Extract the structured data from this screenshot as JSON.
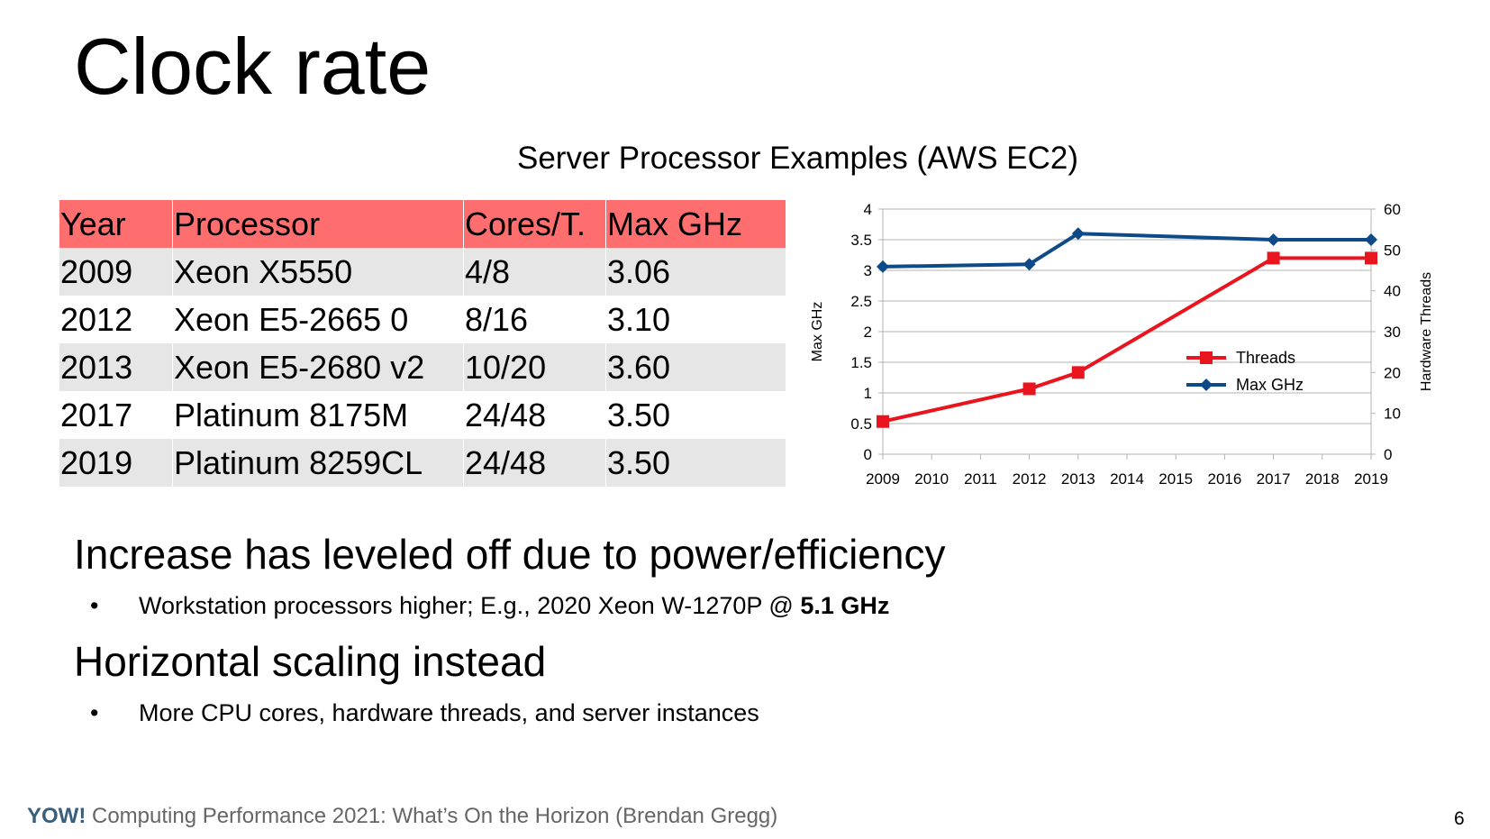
{
  "slide": {
    "title": "Clock rate",
    "subtitle": "Server Processor Examples (AWS EC2)",
    "page_number": "6"
  },
  "table": {
    "headers": [
      "Year",
      "Processor",
      "Cores/T.",
      "Max GHz"
    ],
    "rows": [
      [
        "2009",
        "Xeon X5550",
        "4/8",
        "3.06"
      ],
      [
        "2012",
        "Xeon E5-2665 0",
        "8/16",
        "3.10"
      ],
      [
        "2013",
        "Xeon E5-2680 v2",
        "10/20",
        "3.60"
      ],
      [
        "2017",
        "Platinum 8175M",
        "24/48",
        "3.50"
      ],
      [
        "2019",
        "Platinum 8259CL",
        "24/48",
        "3.50"
      ]
    ],
    "header_color": "#ff6e6e",
    "stripe_color": "#e6e6e6"
  },
  "chart_data": {
    "type": "line",
    "title": "",
    "x": [
      2009,
      2010,
      2011,
      2012,
      2013,
      2014,
      2015,
      2016,
      2017,
      2018,
      2019
    ],
    "xlim": [
      2009,
      2019
    ],
    "ylabel": "Max GHz",
    "ylim": [
      0,
      4
    ],
    "y_ticks": [
      "0",
      "0.5",
      "1",
      "1.5",
      "2",
      "2.5",
      "3",
      "3.5",
      "4"
    ],
    "y2label": "Hardware Threads",
    "y2lim": [
      0,
      60
    ],
    "y2_ticks": [
      "0",
      "10",
      "20",
      "30",
      "40",
      "50",
      "60"
    ],
    "grid": true,
    "legend_position": "right",
    "series": [
      {
        "name": "Threads",
        "axis": "right",
        "color": "#e8141e",
        "marker": "square",
        "points": [
          [
            2009,
            8
          ],
          [
            2012,
            16
          ],
          [
            2013,
            20
          ],
          [
            2017,
            48
          ],
          [
            2019,
            48
          ]
        ]
      },
      {
        "name": "Max GHz",
        "axis": "left",
        "color": "#0d4a87",
        "marker": "diamond",
        "points": [
          [
            2009,
            3.06
          ],
          [
            2012,
            3.1
          ],
          [
            2013,
            3.6
          ],
          [
            2017,
            3.5
          ],
          [
            2019,
            3.5
          ]
        ]
      }
    ]
  },
  "bullets": {
    "h1": "Increase has leveled off due to power/efficiency",
    "b1_text": "Workstation processors higher; E.g., 2020 Xeon W-1270P @ ",
    "b1_bold": "5.1 GHz",
    "h2": "Horizontal scaling instead",
    "b2_text": "More CPU cores, hardware threads, and server instances",
    "bullet_glyph": "•"
  },
  "footer": {
    "brand": "YOW!",
    "text": " Computing Performance 2021: What’s On the Horizon (Brendan Gregg)",
    "brand_color": "#3a5f7d"
  }
}
